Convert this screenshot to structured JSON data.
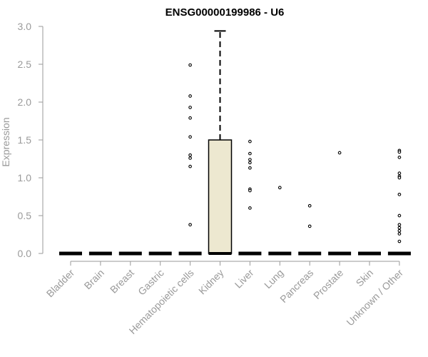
{
  "chart_data": {
    "type": "boxplot",
    "title": "ENSG00000199986 - U6",
    "xlabel": "",
    "ylabel": "Expression",
    "ylim": [
      0,
      3.0
    ],
    "yticks": [
      "0.0",
      "0.5",
      "1.0",
      "1.5",
      "2.0",
      "2.5",
      "3.0"
    ],
    "grid": false,
    "legend": "none",
    "box_fill": "#ede8d0",
    "categories": [
      "Bladder",
      "Brain",
      "Breast",
      "Gastric",
      "Hematopoietic cells",
      "Kidney",
      "Liver",
      "Lung",
      "Pancreas",
      "Prostate",
      "Skin",
      "Unknown / Other"
    ],
    "boxes": [
      {
        "category": "Bladder",
        "q1": 0,
        "median": 0,
        "q3": 0,
        "whisker_low": 0,
        "whisker_high": 0,
        "outliers": []
      },
      {
        "category": "Brain",
        "q1": 0,
        "median": 0,
        "q3": 0,
        "whisker_low": 0,
        "whisker_high": 0,
        "outliers": []
      },
      {
        "category": "Breast",
        "q1": 0,
        "median": 0,
        "q3": 0,
        "whisker_low": 0,
        "whisker_high": 0,
        "outliers": []
      },
      {
        "category": "Gastric",
        "q1": 0,
        "median": 0,
        "q3": 0,
        "whisker_low": 0,
        "whisker_high": 0,
        "outliers": []
      },
      {
        "category": "Hematopoietic cells",
        "q1": 0,
        "median": 0,
        "q3": 0,
        "whisker_low": 0,
        "whisker_high": 0,
        "outliers": [
          2.49,
          2.08,
          1.93,
          1.79,
          1.54,
          1.3,
          1.26,
          1.15,
          0.38
        ]
      },
      {
        "category": "Kidney",
        "q1": 0,
        "median": 0,
        "q3": 1.5,
        "whisker_low": 0,
        "whisker_high": 2.94,
        "outliers": []
      },
      {
        "category": "Liver",
        "q1": 0,
        "median": 0,
        "q3": 0,
        "whisker_low": 0,
        "whisker_high": 0,
        "outliers": [
          1.48,
          1.32,
          1.24,
          1.2,
          1.13,
          0.85,
          0.83,
          0.6
        ]
      },
      {
        "category": "Lung",
        "q1": 0,
        "median": 0,
        "q3": 0,
        "whisker_low": 0,
        "whisker_high": 0,
        "outliers": [
          0.87
        ]
      },
      {
        "category": "Pancreas",
        "q1": 0,
        "median": 0,
        "q3": 0,
        "whisker_low": 0,
        "whisker_high": 0,
        "outliers": [
          0.63,
          0.36
        ]
      },
      {
        "category": "Prostate",
        "q1": 0,
        "median": 0,
        "q3": 0,
        "whisker_low": 0,
        "whisker_high": 0,
        "outliers": [
          1.33
        ]
      },
      {
        "category": "Skin",
        "q1": 0,
        "median": 0,
        "q3": 0,
        "whisker_low": 0,
        "whisker_high": 0,
        "outliers": []
      },
      {
        "category": "Unknown / Other",
        "q1": 0,
        "median": 0,
        "q3": 0,
        "whisker_low": 0,
        "whisker_high": 0,
        "outliers": [
          1.36,
          1.34,
          1.27,
          1.06,
          1.02,
          1.0,
          0.78,
          0.5,
          0.38,
          0.34,
          0.3,
          0.26,
          0.16
        ]
      }
    ]
  }
}
